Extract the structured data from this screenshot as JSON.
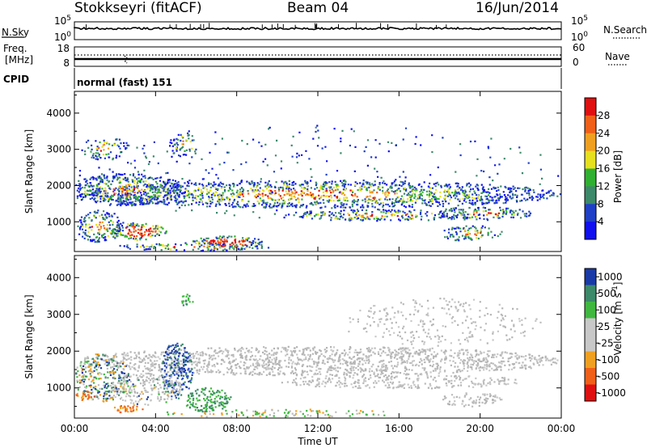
{
  "header": {
    "title": "Stokkseyri (fitACF)",
    "beam": "Beam 04",
    "date": "16/Jun/2014"
  },
  "colors": {
    "power_scale": [
      "#1010f0",
      "#2040c8",
      "#3c8a6a",
      "#30b030",
      "#e6e01e",
      "#f0a020",
      "#f06018",
      "#e01010"
    ],
    "velocity_scale": [
      "#e01010",
      "#f06018",
      "#f0a020",
      "#c8c8c8",
      "#c8c8c8",
      "#40b840",
      "#3c8a6a",
      "#1a3aa8"
    ],
    "ground_scatter": "#bcbcbc"
  },
  "chart_data": [
    {
      "type": "line",
      "name": "sky-noise-panel",
      "ylabel": "N.Sky",
      "y_tick_labels": [
        "10^5",
        "10^0"
      ],
      "right_label": "N.Search",
      "right_tick_labels": [
        "10^5",
        "10^0"
      ],
      "xlim": [
        0,
        24
      ]
    },
    {
      "type": "line",
      "name": "frequency-panel",
      "ylabel_lines": [
        "Freq.",
        "[MHz]"
      ],
      "y_tick_labels": [
        "18",
        "8"
      ],
      "right_label": "Nave",
      "right_tick_labels": [
        "60",
        "0"
      ],
      "xlim": [
        0,
        24
      ]
    },
    {
      "type": "table",
      "name": "cpid-panel",
      "label": "CPID",
      "value": "normal (fast) 151"
    },
    {
      "type": "heatmap",
      "name": "power-panel",
      "ylabel": "Slant Range [km]",
      "ylim": [
        180,
        4600
      ],
      "y_ticks": [
        1000,
        2000,
        3000,
        4000
      ],
      "xlim": [
        0,
        24
      ],
      "colorbar": {
        "label": "Power [dB]",
        "ticks": [
          4,
          8,
          12,
          16,
          20,
          24,
          28
        ],
        "range": [
          0,
          32
        ]
      }
    },
    {
      "type": "heatmap",
      "name": "velocity-panel",
      "ylabel": "Slant Range [km]",
      "ylim": [
        180,
        4600
      ],
      "y_ticks": [
        1000,
        2000,
        3000,
        4000
      ],
      "xlim": [
        0,
        24
      ],
      "xlabel": "Time UT",
      "x_tick_labels": [
        "00:00",
        "04:00",
        "08:00",
        "12:00",
        "16:00",
        "20:00",
        "00:00"
      ],
      "x_ticks": [
        0,
        4,
        8,
        12,
        16,
        20,
        24
      ],
      "colorbar": {
        "label_main": "Velocity",
        "label_unit": "[m s",
        "label_exp": "-1",
        "label_close": "]",
        "tick_labels": [
          "1000",
          "500",
          "100",
          "25",
          "-25",
          "-100",
          "-500",
          "-1000"
        ]
      }
    }
  ]
}
